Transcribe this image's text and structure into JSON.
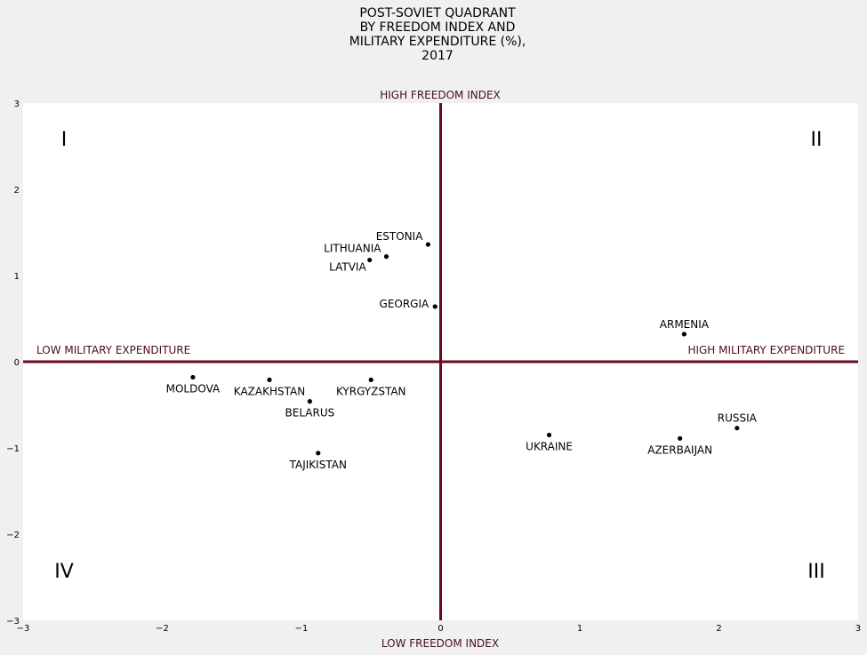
{
  "chart_data": {
    "type": "scatter",
    "title_lines": [
      "POST-SOVIET QUADRANT",
      "BY FREEDOM INDEX AND",
      "MILITARY EXPENDITURE (%),",
      "2017"
    ],
    "xlim": [
      -3,
      3
    ],
    "ylim": [
      -3,
      3
    ],
    "x_ticks": [
      -3,
      -2,
      -1,
      0,
      1,
      2,
      3
    ],
    "y_ticks": [
      -3,
      -2,
      -1,
      0,
      1,
      2,
      3
    ],
    "x_tick_labels": [
      "−3",
      "−2",
      "−1",
      "0",
      "1",
      "2",
      "3"
    ],
    "y_tick_labels": [
      "−3",
      "−2",
      "−1",
      "0",
      "1",
      "2",
      "3"
    ],
    "axis_labels": {
      "top": "HIGH FREEDOM INDEX",
      "bottom": "LOW FREEDOM INDEX",
      "left": "LOW MILITARY EXPENDITURE",
      "right": "HIGH MILITARY EXPENDITURE"
    },
    "quadrant_labels": {
      "top_left": "I",
      "top_right": "II",
      "bottom_right": "III",
      "bottom_left": "IV"
    },
    "accent_color": "#6b0a1a",
    "grid": false,
    "points": [
      {
        "label": "ESTONIA",
        "x": -0.09,
        "y": 1.36,
        "label_pos": "above-left"
      },
      {
        "label": "LITHUANIA",
        "x": -0.39,
        "y": 1.22,
        "label_pos": "above-left"
      },
      {
        "label": "LATVIA",
        "x": -0.51,
        "y": 1.18,
        "label_pos": "below-left"
      },
      {
        "label": "GEORGIA",
        "x": -0.04,
        "y": 0.64,
        "label_pos": "left"
      },
      {
        "label": "ARMENIA",
        "x": 1.75,
        "y": 0.32,
        "label_pos": "above"
      },
      {
        "label": "MOLDOVA",
        "x": -1.78,
        "y": -0.18,
        "label_pos": "below"
      },
      {
        "label": "KAZAKHSTAN",
        "x": -1.23,
        "y": -0.21,
        "label_pos": "below"
      },
      {
        "label": "KYRGYZSTAN",
        "x": -0.5,
        "y": -0.21,
        "label_pos": "below"
      },
      {
        "label": "BELARUS",
        "x": -0.94,
        "y": -0.46,
        "label_pos": "below"
      },
      {
        "label": "TAJIKISTAN",
        "x": -0.88,
        "y": -1.06,
        "label_pos": "below"
      },
      {
        "label": "UKRAINE",
        "x": 0.78,
        "y": -0.85,
        "label_pos": "below"
      },
      {
        "label": "AZERBAIJAN",
        "x": 1.72,
        "y": -0.89,
        "label_pos": "below"
      },
      {
        "label": "RUSSIA",
        "x": 2.13,
        "y": -0.77,
        "label_pos": "above"
      }
    ]
  }
}
